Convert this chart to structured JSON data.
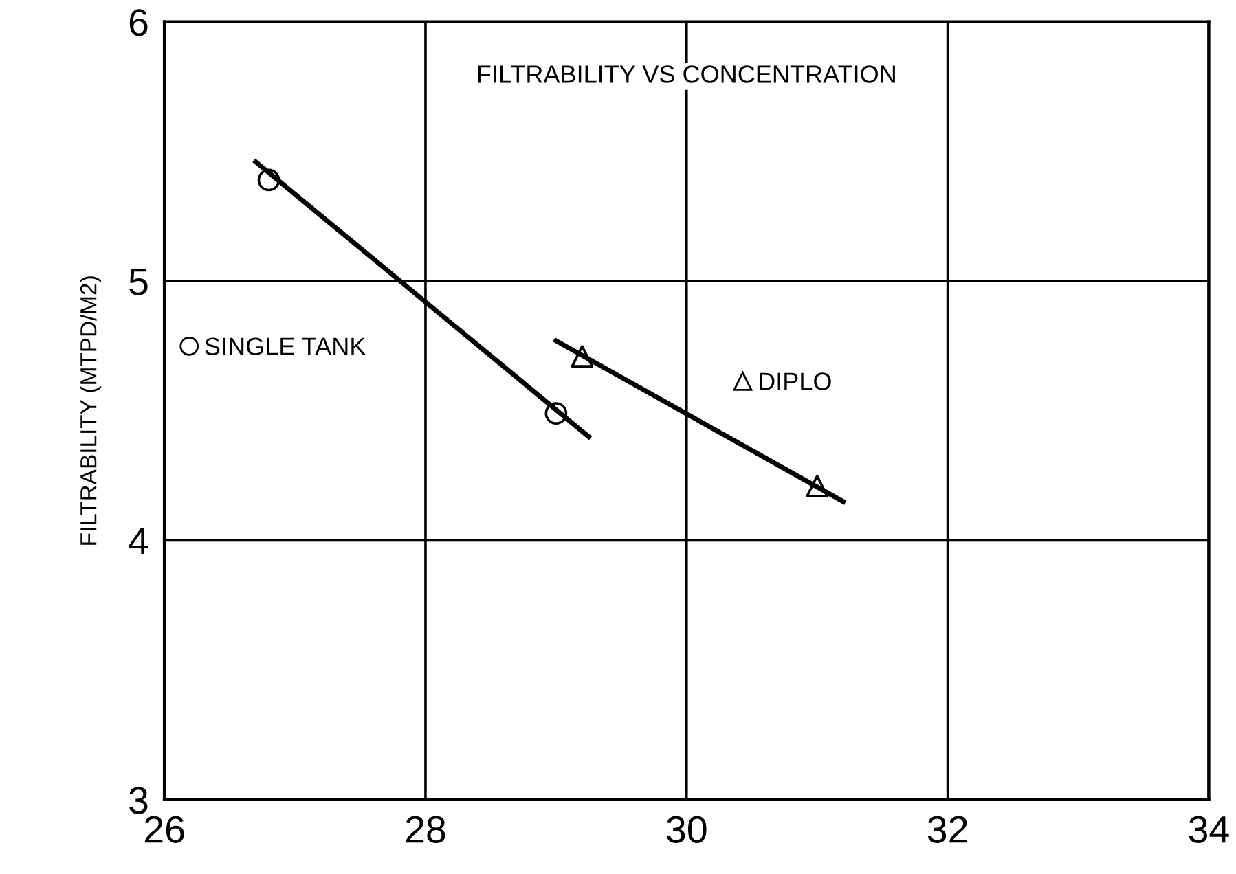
{
  "chart_data": {
    "type": "scatter",
    "title": "FILTRABILITY VS CONCENTRATION",
    "ylabel": "FILTRABILITY (MTPD/M2)",
    "xlim": [
      26,
      34
    ],
    "xticks": [
      26,
      28,
      30,
      32,
      34
    ],
    "ylim": [
      3,
      6
    ],
    "yticks": [
      3,
      4,
      5,
      6
    ],
    "grid": true,
    "legend": "left",
    "series": [
      {
        "name": "SINGLE TANK",
        "marker": "circle",
        "color": "#000000",
        "x": [
          26.8,
          29.0
        ],
        "values": [
          5.39,
          4.49
        ]
      },
      {
        "name": "DIPLO",
        "marker": "triangle",
        "color": "#000000",
        "x": [
          29.2,
          31.0
        ],
        "values": [
          4.71,
          4.21
        ]
      },
      {
        "type": "line",
        "color": "#000000",
        "x": [
          26.7,
          29.25
        ],
        "values": [
          5.46,
          4.4
        ]
      },
      {
        "type": "line",
        "color": "#000000",
        "x": [
          29.0,
          31.2
        ],
        "values": [
          4.77,
          4.15
        ]
      }
    ]
  }
}
